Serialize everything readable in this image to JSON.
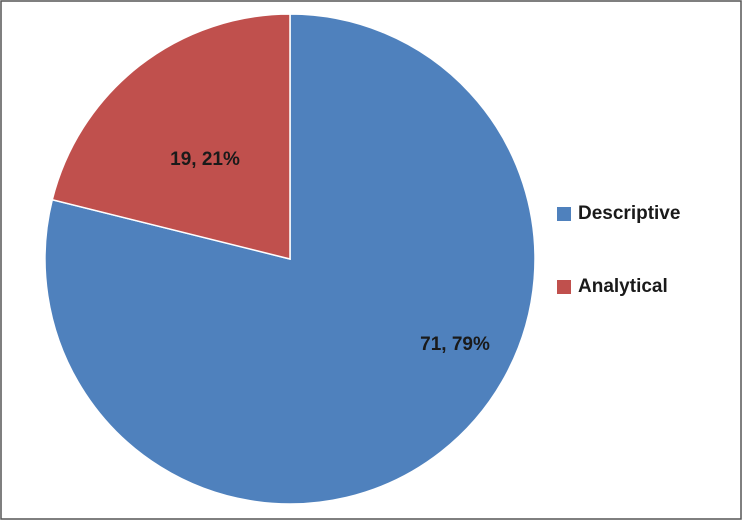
{
  "chart_data": {
    "type": "pie",
    "categories": [
      "Descriptive",
      "Analytical"
    ],
    "values": [
      71,
      19
    ],
    "value_labels": [
      "71, 79%",
      "19, 21%"
    ],
    "colors": [
      "#4f81bd",
      "#c0504d"
    ],
    "legend": "right"
  }
}
